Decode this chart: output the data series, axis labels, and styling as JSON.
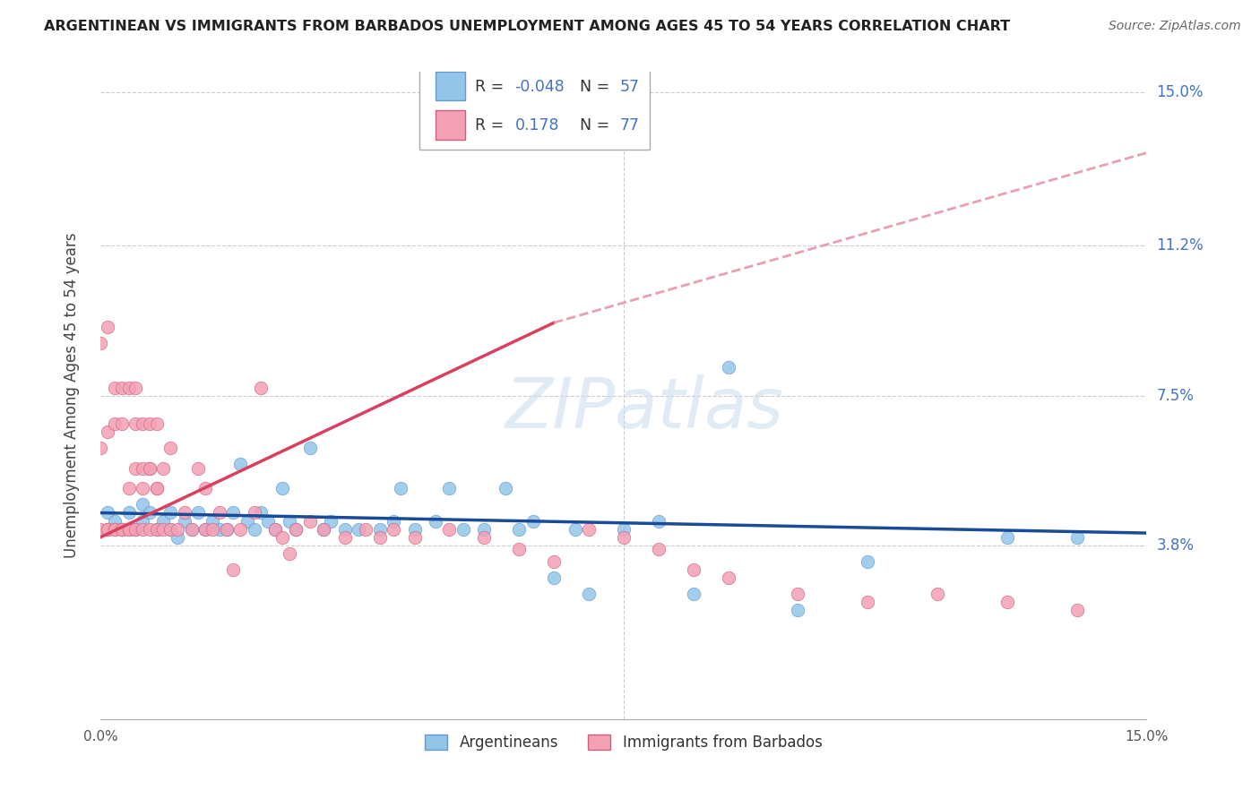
{
  "title": "ARGENTINEAN VS IMMIGRANTS FROM BARBADOS UNEMPLOYMENT AMONG AGES 45 TO 54 YEARS CORRELATION CHART",
  "source": "Source: ZipAtlas.com",
  "ylabel": "Unemployment Among Ages 45 to 54 years",
  "xlim": [
    0.0,
    0.15
  ],
  "ylim": [
    -0.005,
    0.155
  ],
  "yticks": [
    0.0,
    0.038,
    0.075,
    0.112,
    0.15
  ],
  "ytick_labels": [
    "",
    "3.8%",
    "7.5%",
    "11.2%",
    "15.0%"
  ],
  "color_blue": "#92C5E8",
  "color_pink": "#F4A0B5",
  "color_blue_line": "#1A4A9A",
  "color_pink_line": "#D94060",
  "color_pink_dashed": "#E8A0B0",
  "watermark": "ZIPatlas",
  "blue_r": -0.048,
  "blue_n": 57,
  "pink_r": 0.178,
  "pink_n": 77,
  "blue_scatter_x": [
    0.001,
    0.002,
    0.003,
    0.004,
    0.005,
    0.006,
    0.006,
    0.007,
    0.008,
    0.009,
    0.01,
    0.01,
    0.011,
    0.012,
    0.013,
    0.014,
    0.015,
    0.016,
    0.017,
    0.018,
    0.019,
    0.02,
    0.021,
    0.022,
    0.023,
    0.024,
    0.025,
    0.026,
    0.027,
    0.028,
    0.03,
    0.032,
    0.033,
    0.035,
    0.037,
    0.04,
    0.042,
    0.043,
    0.045,
    0.048,
    0.05,
    0.052,
    0.055,
    0.058,
    0.06,
    0.062,
    0.065,
    0.068,
    0.07,
    0.075,
    0.08,
    0.085,
    0.09,
    0.1,
    0.11,
    0.13,
    0.14
  ],
  "blue_scatter_y": [
    0.046,
    0.044,
    0.042,
    0.046,
    0.042,
    0.044,
    0.048,
    0.046,
    0.042,
    0.044,
    0.042,
    0.046,
    0.04,
    0.044,
    0.042,
    0.046,
    0.042,
    0.044,
    0.042,
    0.042,
    0.046,
    0.058,
    0.044,
    0.042,
    0.046,
    0.044,
    0.042,
    0.052,
    0.044,
    0.042,
    0.062,
    0.042,
    0.044,
    0.042,
    0.042,
    0.042,
    0.044,
    0.052,
    0.042,
    0.044,
    0.052,
    0.042,
    0.042,
    0.052,
    0.042,
    0.044,
    0.03,
    0.042,
    0.026,
    0.042,
    0.044,
    0.026,
    0.082,
    0.022,
    0.034,
    0.04,
    0.04
  ],
  "pink_scatter_x": [
    0.0,
    0.0,
    0.0,
    0.001,
    0.001,
    0.001,
    0.002,
    0.002,
    0.002,
    0.003,
    0.003,
    0.003,
    0.004,
    0.004,
    0.004,
    0.005,
    0.005,
    0.005,
    0.006,
    0.006,
    0.006,
    0.007,
    0.007,
    0.007,
    0.008,
    0.008,
    0.008,
    0.009,
    0.009,
    0.01,
    0.01,
    0.011,
    0.012,
    0.013,
    0.014,
    0.015,
    0.015,
    0.016,
    0.017,
    0.018,
    0.019,
    0.02,
    0.022,
    0.023,
    0.025,
    0.026,
    0.027,
    0.028,
    0.03,
    0.032,
    0.035,
    0.038,
    0.04,
    0.042,
    0.045,
    0.05,
    0.055,
    0.06,
    0.065,
    0.07,
    0.075,
    0.08,
    0.085,
    0.09,
    0.1,
    0.11,
    0.12,
    0.13,
    0.14,
    0.001,
    0.002,
    0.003,
    0.004,
    0.005,
    0.006,
    0.007,
    0.008
  ],
  "pink_scatter_y": [
    0.042,
    0.062,
    0.088,
    0.042,
    0.066,
    0.042,
    0.042,
    0.068,
    0.042,
    0.042,
    0.068,
    0.042,
    0.042,
    0.052,
    0.042,
    0.042,
    0.057,
    0.068,
    0.042,
    0.052,
    0.068,
    0.042,
    0.057,
    0.068,
    0.042,
    0.052,
    0.068,
    0.042,
    0.057,
    0.042,
    0.062,
    0.042,
    0.046,
    0.042,
    0.057,
    0.042,
    0.052,
    0.042,
    0.046,
    0.042,
    0.032,
    0.042,
    0.046,
    0.077,
    0.042,
    0.04,
    0.036,
    0.042,
    0.044,
    0.042,
    0.04,
    0.042,
    0.04,
    0.042,
    0.04,
    0.042,
    0.04,
    0.037,
    0.034,
    0.042,
    0.04,
    0.037,
    0.032,
    0.03,
    0.026,
    0.024,
    0.026,
    0.024,
    0.022,
    0.092,
    0.077,
    0.077,
    0.077,
    0.077,
    0.057,
    0.057,
    0.052
  ]
}
